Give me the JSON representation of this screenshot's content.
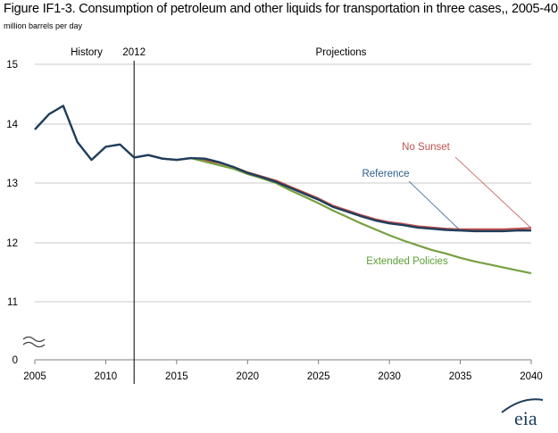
{
  "chart_data": {
    "type": "line",
    "title": "Figure IF1-3. Consumption of petroleum and other liquids for transportation in three cases,, 2005-40",
    "units_label": "million barrels  per day",
    "xlabel": "",
    "ylabel": "",
    "xlim": [
      2005,
      2040
    ],
    "ylim": [
      0,
      15
    ],
    "axis_break": true,
    "x_ticks": [
      "2005",
      "2010",
      "2015",
      "2020",
      "2025",
      "2030",
      "2035",
      "2040"
    ],
    "y_ticks": [
      "0",
      "11",
      "12",
      "13",
      "14",
      "15"
    ],
    "grid": "horizontal",
    "divider_year": 2012,
    "divider_label": "2012",
    "history_label": "History",
    "projections_label": "Projections",
    "series": [
      {
        "name": "No Sunset",
        "color": "#c0504d",
        "label_color": "#c0504d",
        "x": [
          2012,
          2013,
          2014,
          2015,
          2016,
          2017,
          2018,
          2019,
          2020,
          2021,
          2022,
          2023,
          2024,
          2025,
          2026,
          2027,
          2028,
          2029,
          2030,
          2031,
          2032,
          2033,
          2034,
          2035,
          2036,
          2037,
          2038,
          2039,
          2040
        ],
        "values": [
          13.43,
          13.47,
          13.41,
          13.39,
          13.42,
          13.38,
          13.34,
          13.27,
          13.18,
          13.11,
          13.04,
          12.94,
          12.84,
          12.74,
          12.62,
          12.54,
          12.46,
          12.39,
          12.34,
          12.31,
          12.27,
          12.25,
          12.23,
          12.22,
          12.22,
          12.22,
          12.22,
          12.23,
          12.24
        ]
      },
      {
        "name": "Extended Policies",
        "color": "#77a040",
        "label_color": "#5a9e32",
        "x": [
          2012,
          2013,
          2014,
          2015,
          2016,
          2017,
          2018,
          2019,
          2020,
          2021,
          2022,
          2023,
          2024,
          2025,
          2026,
          2027,
          2028,
          2029,
          2030,
          2031,
          2032,
          2033,
          2034,
          2035,
          2036,
          2037,
          2038,
          2039,
          2040
        ],
        "values": [
          13.43,
          13.47,
          13.41,
          13.39,
          13.42,
          13.36,
          13.3,
          13.24,
          13.15,
          13.08,
          13.0,
          12.88,
          12.77,
          12.66,
          12.54,
          12.43,
          12.32,
          12.22,
          12.12,
          12.03,
          11.95,
          11.87,
          11.81,
          11.74,
          11.68,
          11.63,
          11.58,
          11.53,
          11.48
        ]
      },
      {
        "name": "Reference",
        "color": "#1f3d5c",
        "label_color": "#2e5e8c",
        "x": [
          2005,
          2006,
          2007,
          2008,
          2009,
          2010,
          2011,
          2012,
          2013,
          2014,
          2015,
          2016,
          2017,
          2018,
          2019,
          2020,
          2021,
          2022,
          2023,
          2024,
          2025,
          2026,
          2027,
          2028,
          2029,
          2030,
          2031,
          2032,
          2033,
          2034,
          2035,
          2036,
          2037,
          2038,
          2039,
          2040
        ],
        "values": [
          13.9,
          14.16,
          14.3,
          13.69,
          13.39,
          13.61,
          13.65,
          13.43,
          13.47,
          13.41,
          13.39,
          13.42,
          13.41,
          13.35,
          13.27,
          13.17,
          13.1,
          13.02,
          12.92,
          12.82,
          12.72,
          12.6,
          12.52,
          12.44,
          12.37,
          12.32,
          12.29,
          12.25,
          12.23,
          12.21,
          12.2,
          12.19,
          12.19,
          12.19,
          12.2,
          12.2
        ]
      }
    ],
    "annotations": [
      {
        "text": "No Sunset",
        "series": "No Sunset"
      },
      {
        "text": "Reference",
        "series": "Reference"
      },
      {
        "text": "Extended Policies",
        "series": "Extended Policies"
      }
    ],
    "logo_text": "eia"
  }
}
